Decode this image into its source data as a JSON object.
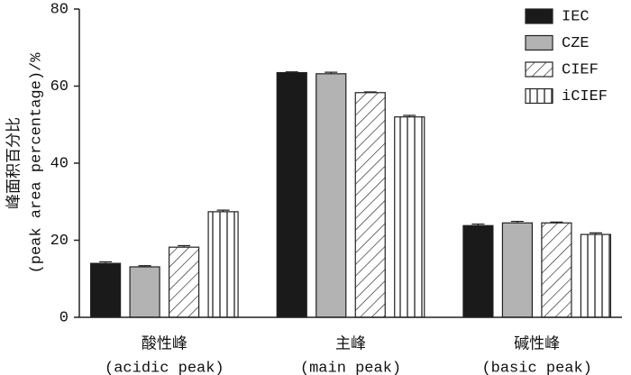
{
  "chart_data": {
    "type": "bar",
    "ylabel": [
      "峰面积百分比",
      "(peak area percentage)/%"
    ],
    "categories": [
      [
        "酸性峰",
        "(acidic peak)"
      ],
      [
        "主峰",
        "(main peak)"
      ],
      [
        "碱性峰",
        "(basic peak)"
      ]
    ],
    "series": [
      {
        "name": "IEC",
        "color": "#1a1a1a",
        "pattern": "solid",
        "values": [
          14.0,
          63.5,
          23.8
        ],
        "errors": [
          0.4,
          0.2,
          0.4
        ]
      },
      {
        "name": "CZE",
        "color": "#b3b3b3",
        "pattern": "solid",
        "values": [
          13.1,
          63.2,
          24.5
        ],
        "errors": [
          0.3,
          0.4,
          0.4
        ]
      },
      {
        "name": "CIEF",
        "color": "#222222",
        "pattern": "diagonal",
        "values": [
          18.2,
          58.3,
          24.5
        ],
        "errors": [
          0.4,
          0.2,
          0.2
        ]
      },
      {
        "name": "iCIEF",
        "color": "#222222",
        "pattern": "vertical",
        "values": [
          27.4,
          52.0,
          21.5
        ],
        "errors": [
          0.4,
          0.4,
          0.4
        ]
      }
    ],
    "ylim": [
      0,
      80
    ],
    "yticks": [
      0,
      20,
      40,
      60,
      80
    ],
    "legend": "top-right"
  }
}
